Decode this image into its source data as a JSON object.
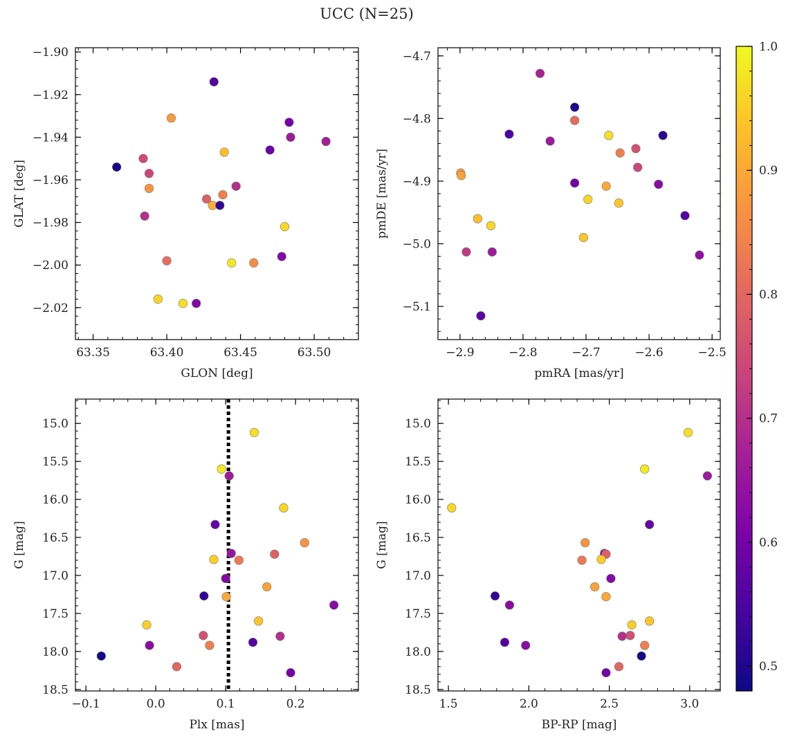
{
  "figure_title": "UCC (N=25)",
  "colorbar": {
    "cmap": "plasma",
    "vmin": 0.48,
    "vmax": 1.0,
    "ticks": [
      0.5,
      0.6,
      0.7,
      0.8,
      0.9,
      1.0
    ],
    "tick_labels": [
      "0.5",
      "0.6",
      "0.7",
      "0.8",
      "0.9",
      "1.0"
    ]
  },
  "chart_data": [
    {
      "type": "scatter",
      "xlabel": "GLON [deg]",
      "ylabel": "GLAT [deg]",
      "xlim": [
        63.338,
        63.53
      ],
      "ylim": [
        -2.035,
        -1.898
      ],
      "y_inverted": false,
      "xticks": [
        63.35,
        63.4,
        63.45,
        63.5
      ],
      "xtick_labels": [
        "63.35",
        "63.40",
        "63.45",
        "63.50"
      ],
      "yticks": [
        -2.02,
        -2.0,
        -1.98,
        -1.96,
        -1.94,
        -1.92,
        -1.9
      ],
      "ytick_labels": [
        "−2.02",
        "−2.00",
        "−1.98",
        "−1.96",
        "−1.94",
        "−1.92",
        "−1.90"
      ],
      "points": [
        {
          "x": 63.366,
          "y": -1.954,
          "c": 0.49
        },
        {
          "x": 63.384,
          "y": -1.95,
          "c": 0.75
        },
        {
          "x": 63.388,
          "y": -1.957,
          "c": 0.74
        },
        {
          "x": 63.388,
          "y": -1.964,
          "c": 0.87
        },
        {
          "x": 63.385,
          "y": -1.977,
          "c": 0.7
        },
        {
          "x": 63.403,
          "y": -1.931,
          "c": 0.88
        },
        {
          "x": 63.4,
          "y": -1.998,
          "c": 0.81
        },
        {
          "x": 63.394,
          "y": -2.016,
          "c": 0.96
        },
        {
          "x": 63.411,
          "y": -2.018,
          "c": 0.97
        },
        {
          "x": 63.42,
          "y": -2.018,
          "c": 0.62
        },
        {
          "x": 63.432,
          "y": -1.914,
          "c": 0.56
        },
        {
          "x": 63.427,
          "y": -1.969,
          "c": 0.79
        },
        {
          "x": 63.431,
          "y": -1.972,
          "c": 0.91
        },
        {
          "x": 63.436,
          "y": -1.972,
          "c": 0.52
        },
        {
          "x": 63.438,
          "y": -1.967,
          "c": 0.84
        },
        {
          "x": 63.439,
          "y": -1.947,
          "c": 0.93
        },
        {
          "x": 63.447,
          "y": -1.963,
          "c": 0.7
        },
        {
          "x": 63.444,
          "y": -1.999,
          "c": 0.98
        },
        {
          "x": 63.459,
          "y": -1.999,
          "c": 0.86
        },
        {
          "x": 63.47,
          "y": -1.946,
          "c": 0.59
        },
        {
          "x": 63.478,
          "y": -1.996,
          "c": 0.62
        },
        {
          "x": 63.48,
          "y": -1.982,
          "c": 0.96
        },
        {
          "x": 63.483,
          "y": -1.933,
          "c": 0.6
        },
        {
          "x": 63.484,
          "y": -1.94,
          "c": 0.66
        },
        {
          "x": 63.508,
          "y": -1.942,
          "c": 0.67
        }
      ]
    },
    {
      "type": "scatter",
      "xlabel": "pmRA [mas/yr]",
      "ylabel": "pmDE [mas/yr]",
      "xlim": [
        -2.935,
        -2.487
      ],
      "ylim": [
        -5.153,
        -4.687
      ],
      "y_inverted": false,
      "xticks": [
        -2.9,
        -2.8,
        -2.7,
        -2.6,
        -2.5
      ],
      "xtick_labels": [
        "−2.9",
        "−2.8",
        "−2.7",
        "−2.6",
        "−2.5"
      ],
      "yticks": [
        -5.1,
        -5.0,
        -4.9,
        -4.8,
        -4.7
      ],
      "ytick_labels": [
        "−5.1",
        "−5.0",
        "−4.9",
        "−4.8",
        "−4.7"
      ],
      "points": [
        {
          "x": -2.773,
          "y": -4.728,
          "c": 0.68
        },
        {
          "x": -2.718,
          "y": -4.782,
          "c": 0.5
        },
        {
          "x": -2.718,
          "y": -4.803,
          "c": 0.81
        },
        {
          "x": -2.822,
          "y": -4.825,
          "c": 0.55
        },
        {
          "x": -2.757,
          "y": -4.836,
          "c": 0.66
        },
        {
          "x": -2.664,
          "y": -4.827,
          "c": 0.97
        },
        {
          "x": -2.578,
          "y": -4.827,
          "c": 0.51
        },
        {
          "x": -2.646,
          "y": -4.855,
          "c": 0.84
        },
        {
          "x": -2.621,
          "y": -4.848,
          "c": 0.76
        },
        {
          "x": -2.618,
          "y": -4.878,
          "c": 0.74
        },
        {
          "x": -2.899,
          "y": -4.887,
          "c": 0.88
        },
        {
          "x": -2.898,
          "y": -4.891,
          "c": 0.89
        },
        {
          "x": -2.718,
          "y": -4.903,
          "c": 0.6
        },
        {
          "x": -2.668,
          "y": -4.908,
          "c": 0.9
        },
        {
          "x": -2.585,
          "y": -4.905,
          "c": 0.63
        },
        {
          "x": -2.697,
          "y": -4.929,
          "c": 0.96
        },
        {
          "x": -2.648,
          "y": -4.935,
          "c": 0.94
        },
        {
          "x": -2.872,
          "y": -4.96,
          "c": 0.93
        },
        {
          "x": -2.851,
          "y": -4.971,
          "c": 0.96
        },
        {
          "x": -2.704,
          "y": -4.99,
          "c": 0.94
        },
        {
          "x": -2.543,
          "y": -4.955,
          "c": 0.56
        },
        {
          "x": -2.89,
          "y": -5.013,
          "c": 0.72
        },
        {
          "x": -2.849,
          "y": -5.013,
          "c": 0.66
        },
        {
          "x": -2.52,
          "y": -5.018,
          "c": 0.64
        },
        {
          "x": -2.867,
          "y": -5.115,
          "c": 0.57
        }
      ]
    },
    {
      "type": "scatter",
      "xlabel": "Plx [mas]",
      "ylabel": "G [mag]",
      "xlim": [
        -0.115,
        0.29
      ],
      "ylim": [
        18.52,
        14.68
      ],
      "y_inverted": true,
      "xticks": [
        -0.1,
        0.0,
        0.1,
        0.2
      ],
      "xtick_labels": [
        "−0.1",
        "0.0",
        "0.1",
        "0.2"
      ],
      "yticks": [
        15.0,
        15.5,
        16.0,
        16.5,
        17.0,
        17.5,
        18.0,
        18.5
      ],
      "ytick_labels": [
        "15.0",
        "15.5",
        "16.0",
        "16.5",
        "17.0",
        "17.5",
        "18.0",
        "18.5"
      ],
      "vline": {
        "x": 0.104,
        "style": "dotted"
      },
      "points": [
        {
          "x": 0.141,
          "y": 15.12,
          "c": 0.97
        },
        {
          "x": 0.094,
          "y": 15.6,
          "c": 0.98
        },
        {
          "x": 0.105,
          "y": 15.69,
          "c": 0.66
        },
        {
          "x": 0.183,
          "y": 16.11,
          "c": 0.96
        },
        {
          "x": 0.085,
          "y": 16.33,
          "c": 0.58
        },
        {
          "x": 0.213,
          "y": 16.57,
          "c": 0.87
        },
        {
          "x": 0.108,
          "y": 16.71,
          "c": 0.65
        },
        {
          "x": 0.17,
          "y": 16.72,
          "c": 0.79
        },
        {
          "x": 0.083,
          "y": 16.79,
          "c": 0.95
        },
        {
          "x": 0.119,
          "y": 16.8,
          "c": 0.83
        },
        {
          "x": 0.1,
          "y": 17.04,
          "c": 0.62
        },
        {
          "x": 0.159,
          "y": 17.15,
          "c": 0.89
        },
        {
          "x": 0.069,
          "y": 17.27,
          "c": 0.52
        },
        {
          "x": 0.101,
          "y": 17.28,
          "c": 0.9
        },
        {
          "x": 0.255,
          "y": 17.39,
          "c": 0.63
        },
        {
          "x": 0.147,
          "y": 17.6,
          "c": 0.94
        },
        {
          "x": -0.013,
          "y": 17.65,
          "c": 0.95
        },
        {
          "x": 0.068,
          "y": 17.79,
          "c": 0.76
        },
        {
          "x": 0.178,
          "y": 17.8,
          "c": 0.7
        },
        {
          "x": 0.139,
          "y": 17.88,
          "c": 0.56
        },
        {
          "x": 0.077,
          "y": 17.92,
          "c": 0.84
        },
        {
          "x": -0.009,
          "y": 17.92,
          "c": 0.63
        },
        {
          "x": -0.078,
          "y": 18.06,
          "c": 0.49
        },
        {
          "x": 0.03,
          "y": 18.2,
          "c": 0.8
        },
        {
          "x": 0.193,
          "y": 18.28,
          "c": 0.6
        }
      ]
    },
    {
      "type": "scatter",
      "xlabel": "BP-RP [mag]",
      "ylabel": "G [mag]",
      "xlim": [
        1.435,
        3.19
      ],
      "ylim": [
        18.52,
        14.68
      ],
      "y_inverted": true,
      "xticks": [
        1.5,
        2.0,
        2.5,
        3.0
      ],
      "xtick_labels": [
        "1.5",
        "2.0",
        "2.5",
        "3.0"
      ],
      "yticks": [
        15.0,
        15.5,
        16.0,
        16.5,
        17.0,
        17.5,
        18.0,
        18.5
      ],
      "ytick_labels": [
        "15.0",
        "15.5",
        "16.0",
        "16.5",
        "17.0",
        "17.5",
        "18.0",
        "18.5"
      ],
      "points": [
        {
          "x": 2.99,
          "y": 15.12,
          "c": 0.97
        },
        {
          "x": 2.72,
          "y": 15.6,
          "c": 0.98
        },
        {
          "x": 3.11,
          "y": 15.69,
          "c": 0.66
        },
        {
          "x": 1.52,
          "y": 16.11,
          "c": 0.96
        },
        {
          "x": 2.75,
          "y": 16.33,
          "c": 0.58
        },
        {
          "x": 2.35,
          "y": 16.57,
          "c": 0.87
        },
        {
          "x": 2.47,
          "y": 16.71,
          "c": 0.65
        },
        {
          "x": 2.48,
          "y": 16.72,
          "c": 0.79
        },
        {
          "x": 2.45,
          "y": 16.79,
          "c": 0.95
        },
        {
          "x": 2.33,
          "y": 16.8,
          "c": 0.83
        },
        {
          "x": 2.51,
          "y": 17.04,
          "c": 0.62
        },
        {
          "x": 2.41,
          "y": 17.15,
          "c": 0.89
        },
        {
          "x": 1.79,
          "y": 17.27,
          "c": 0.52
        },
        {
          "x": 2.48,
          "y": 17.28,
          "c": 0.9
        },
        {
          "x": 1.88,
          "y": 17.39,
          "c": 0.63
        },
        {
          "x": 2.75,
          "y": 17.6,
          "c": 0.94
        },
        {
          "x": 2.64,
          "y": 17.65,
          "c": 0.95
        },
        {
          "x": 2.63,
          "y": 17.79,
          "c": 0.76
        },
        {
          "x": 2.58,
          "y": 17.8,
          "c": 0.7
        },
        {
          "x": 1.85,
          "y": 17.88,
          "c": 0.56
        },
        {
          "x": 2.72,
          "y": 17.92,
          "c": 0.84
        },
        {
          "x": 1.98,
          "y": 17.92,
          "c": 0.63
        },
        {
          "x": 2.7,
          "y": 18.06,
          "c": 0.49
        },
        {
          "x": 2.56,
          "y": 18.2,
          "c": 0.8
        },
        {
          "x": 2.48,
          "y": 18.28,
          "c": 0.6
        }
      ]
    }
  ]
}
